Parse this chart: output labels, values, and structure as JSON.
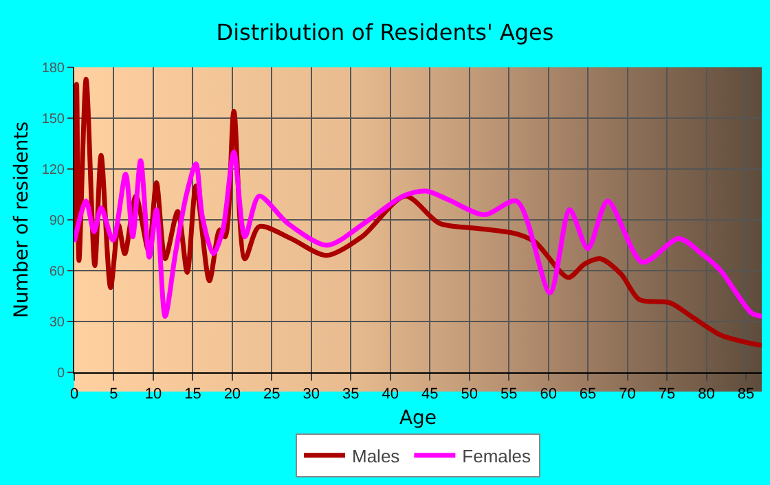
{
  "chart_data": {
    "type": "line",
    "title": "Distribution of Residents' Ages",
    "xlabel": "Age",
    "ylabel": "Number of residents",
    "xlim": [
      0,
      87
    ],
    "xticks": [
      0,
      5,
      10,
      15,
      20,
      25,
      30,
      35,
      40,
      45,
      50,
      55,
      60,
      65,
      70,
      75,
      80,
      85
    ],
    "ylim": [
      0,
      180
    ],
    "yticks": [
      0,
      30,
      60,
      90,
      120,
      150,
      180
    ],
    "grid": true,
    "legend": "bottom",
    "marker": "none",
    "line_style": "solid",
    "series": [
      {
        "name": "Males",
        "color": "#aa0000",
        "x": [
          0,
          0.3,
          0.6,
          1.5,
          2.6,
          3.4,
          4.6,
          5.6,
          6.4,
          7.8,
          9.4,
          10.4,
          11.5,
          13.1,
          14.3,
          15.4,
          17.1,
          18.4,
          19.1,
          20.2,
          21.6,
          23.4,
          27.4,
          31.9,
          36.4,
          41.9,
          46.2,
          50.8,
          55.7,
          58.3,
          62.5,
          64.6,
          66.6,
          69.2,
          71.5,
          75.4,
          78.4,
          81.8,
          85.7,
          87
        ],
        "values": [
          80,
          170,
          66,
          173,
          63,
          128,
          50,
          87,
          70,
          104,
          72,
          112,
          67,
          95,
          59,
          110,
          54,
          84,
          80,
          154,
          67,
          86,
          79,
          69,
          80,
          104,
          88,
          85,
          82,
          77,
          56,
          64,
          67,
          58,
          43,
          41,
          32,
          22,
          17,
          16
        ]
      },
      {
        "name": "Females",
        "color": "#ff00ff",
        "x": [
          0,
          1.5,
          2.5,
          3.4,
          4.9,
          6.5,
          7.4,
          8.4,
          9.5,
          10.4,
          11.5,
          12.8,
          14.2,
          15.4,
          16.2,
          17.6,
          18.8,
          20.2,
          21.6,
          23.4,
          27,
          32,
          36.7,
          41.6,
          44.5,
          47.3,
          51.9,
          56,
          60.2,
          62.7,
          65,
          67.5,
          71.9,
          76.5,
          79.4,
          81.8,
          85.7,
          87
        ],
        "values": [
          77,
          101,
          83,
          97,
          78,
          117,
          80,
          125,
          68,
          96,
          33,
          70,
          105,
          123,
          92,
          70,
          84,
          130,
          80,
          104,
          88,
          75,
          88,
          104,
          107,
          102,
          93,
          101,
          47,
          96,
          73,
          101,
          65,
          79,
          70,
          60,
          35,
          33
        ]
      }
    ]
  }
}
